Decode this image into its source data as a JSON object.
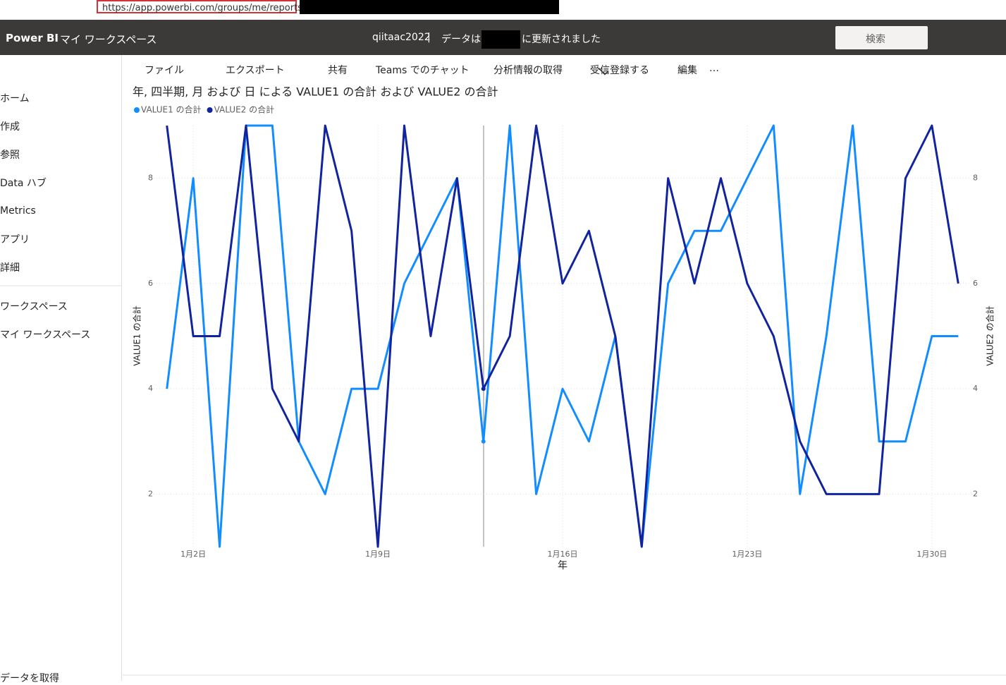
{
  "browser": {
    "url": "https://app.powerbi.com/groups/me/reports"
  },
  "header": {
    "app": "Power BI",
    "workspace": "マイ ワークスペース",
    "user": "qiitaac2022",
    "separator": "|",
    "refresh_prefix": "データは",
    "refresh_suffix": "に更新されました",
    "search": "検索"
  },
  "toolbar": {
    "items": [
      "ファイル",
      "エクスポート",
      "共有",
      "Teams でのチャット",
      "分析情報の取得",
      "受信登録する",
      "編集",
      "…"
    ]
  },
  "sidebar": {
    "items": [
      "ホーム",
      "作成",
      "参照",
      "Data ハブ",
      "Metrics",
      "アプリ",
      "詳細"
    ],
    "workspaces": "ワークスペース",
    "my_workspace": "マイ ワークスペース",
    "get_data": "データを取得"
  },
  "chart_data": {
    "type": "line",
    "title": "年, 四半期, 月 および 日 による VALUE1 の合計 および VALUE2 の合計",
    "x_label": "年",
    "y_label": "VALUE1 の合計",
    "y2_label": "VALUE2 の合計",
    "x": [
      1,
      2,
      3,
      4,
      5,
      6,
      7,
      8,
      9,
      10,
      11,
      12,
      13,
      14,
      15,
      16,
      17,
      18,
      19,
      20,
      21,
      22,
      23,
      24,
      25,
      26,
      27,
      28,
      29,
      30,
      31
    ],
    "xlim": [
      0.5,
      31.5
    ],
    "xticks": [
      {
        "value": 2,
        "label": "1月2日"
      },
      {
        "value": 9,
        "label": "1月9日"
      },
      {
        "value": 16,
        "label": "1月16日"
      },
      {
        "value": 23,
        "label": "1月23日"
      },
      {
        "value": 30,
        "label": "1月30日"
      }
    ],
    "ylim": [
      1,
      9
    ],
    "yticks": [
      2,
      4,
      6,
      8
    ],
    "y2lim": [
      1,
      9
    ],
    "y2ticks": [
      2,
      4,
      6,
      8
    ],
    "grid": true,
    "legend": "top-left",
    "series": [
      {
        "name": "VALUE1 の合計",
        "color": "#118dff",
        "values": [
          4,
          8,
          1,
          9,
          9,
          3,
          2,
          4,
          4,
          6,
          7,
          8,
          3,
          9,
          2,
          4,
          3,
          5,
          1,
          6,
          7,
          7,
          8,
          9,
          2,
          5,
          9,
          3,
          3,
          5,
          5
        ]
      },
      {
        "name": "VALUE2 の合計",
        "color": "#12239e",
        "axis": "y2",
        "values": [
          9,
          5,
          5,
          9,
          4,
          3,
          9,
          7,
          1,
          9,
          5,
          8,
          4,
          5,
          9,
          6,
          7,
          5,
          1,
          8,
          6,
          8,
          6,
          5,
          3,
          2,
          2,
          2,
          8,
          9,
          6
        ]
      }
    ]
  }
}
